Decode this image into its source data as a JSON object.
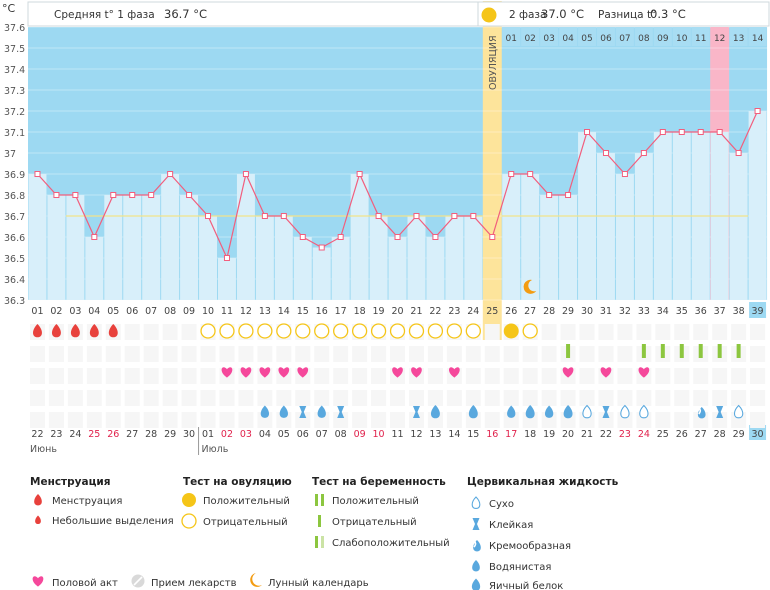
{
  "header": {
    "unit": "°С",
    "phase1": "Средняя t° 1 фаза",
    "phase1_value": "36.7 °C",
    "phase2": "2 фаза",
    "phase2_value": "37.0 °C",
    "diff": "Разница t°",
    "diff_value": "0.3 °C",
    "ovulation": "ОВУЛЯЦИЯ"
  },
  "colors": {
    "phase_bg": "#9dd9f2",
    "bar": "#d8effa",
    "line": "#f25e7d",
    "ovulation": "#fde49b",
    "highlight_day": "#f9b6c8",
    "menstruation": "#e8413c",
    "sex": "#f5489b",
    "ovu_test": "#f5c518",
    "preg_test": "#8cc63f",
    "mucus": "#59a8de",
    "moon": "#f39c12"
  },
  "chart_data": {
    "type": "line",
    "ylabel": "°С",
    "ylim": [
      36.3,
      37.6
    ],
    "yticks": [
      "36.3",
      "36.4",
      "36.5",
      "36.6",
      "36.7",
      "36.8",
      "36.9",
      "37",
      "37.1",
      "37.2",
      "37.3",
      "37.4",
      "37.5",
      "37.6"
    ],
    "cycle_days": [
      "01",
      "02",
      "03",
      "04",
      "05",
      "06",
      "07",
      "08",
      "09",
      "10",
      "11",
      "12",
      "13",
      "14",
      "15",
      "16",
      "17",
      "18",
      "19",
      "20",
      "21",
      "22",
      "23",
      "24",
      "25",
      "26",
      "27",
      "28",
      "29",
      "30",
      "31",
      "32",
      "33",
      "34",
      "35",
      "36",
      "37",
      "38",
      "39"
    ],
    "phase2_days": [
      "01",
      "02",
      "03",
      "04",
      "05",
      "06",
      "07",
      "08",
      "09",
      "10",
      "11",
      "12",
      "13",
      "14"
    ],
    "series": [
      {
        "values": [
          36.9,
          36.8,
          36.8,
          36.6,
          36.8,
          36.8,
          36.8,
          36.9,
          36.8,
          36.7,
          36.5,
          36.9,
          36.7,
          36.7,
          36.6,
          36.55,
          36.6,
          36.9,
          36.7,
          36.6,
          36.7,
          36.6,
          36.7,
          36.7,
          36.6,
          36.9,
          36.9,
          36.8,
          36.8,
          37.1,
          37.0,
          36.9,
          37.0,
          37.1,
          37.1,
          37.1,
          37.1,
          37.0,
          37.2
        ]
      }
    ],
    "phase1_avg": 36.7,
    "phase2_avg": 37.0,
    "ovulation_day": 25,
    "dates": [
      "22",
      "23",
      "24",
      "25",
      "26",
      "27",
      "28",
      "29",
      "30",
      "01",
      "02",
      "03",
      "04",
      "05",
      "06",
      "07",
      "08",
      "09",
      "10",
      "11",
      "12",
      "13",
      "14",
      "15",
      "16",
      "17",
      "18",
      "19",
      "20",
      "21",
      "22",
      "23",
      "24",
      "25",
      "26",
      "27",
      "28",
      "29",
      "30"
    ],
    "red_dates": [
      3,
      4,
      10,
      11,
      17,
      18,
      24,
      25,
      31,
      32
    ],
    "months": {
      "june": "Июнь",
      "july": "Июль"
    },
    "menstruation_days": [
      1,
      2,
      3,
      4,
      5
    ],
    "ovu_negative_days": [
      10,
      11,
      12,
      13,
      14,
      15,
      16,
      17,
      18,
      19,
      20,
      21,
      22,
      23,
      24,
      27
    ],
    "ovu_positive_days": [
      26
    ],
    "preg_test_days": [
      29,
      33,
      34,
      35,
      36,
      37,
      38
    ],
    "sex_days": [
      11,
      12,
      13,
      14,
      15,
      20,
      21,
      23,
      29,
      31,
      33
    ],
    "mucus": [
      {
        "day": 13,
        "kind": "water"
      },
      {
        "day": 14,
        "kind": "water"
      },
      {
        "day": 15,
        "kind": "sticky"
      },
      {
        "day": 16,
        "kind": "water"
      },
      {
        "day": 17,
        "kind": "sticky"
      },
      {
        "day": 21,
        "kind": "sticky"
      },
      {
        "day": 22,
        "kind": "egg"
      },
      {
        "day": 24,
        "kind": "egg"
      },
      {
        "day": 26,
        "kind": "water"
      },
      {
        "day": 27,
        "kind": "egg"
      },
      {
        "day": 28,
        "kind": "water"
      },
      {
        "day": 29,
        "kind": "egg"
      },
      {
        "day": 30,
        "kind": "dry"
      },
      {
        "day": 31,
        "kind": "sticky"
      },
      {
        "day": 32,
        "kind": "dry"
      },
      {
        "day": 33,
        "kind": "dry"
      },
      {
        "day": 36,
        "kind": "creamy"
      },
      {
        "day": 37,
        "kind": "sticky"
      },
      {
        "day": 38,
        "kind": "dry"
      }
    ],
    "moon_day": 27,
    "highlight_phase2_index": 12
  },
  "legend": {
    "menstruation_title": "Менструация",
    "menstruation": "Менструация",
    "spotting": "Небольшие выделения",
    "ovu_title": "Тест на овуляцию",
    "ovu_positive": "Положительный",
    "ovu_negative": "Отрицательный",
    "preg_title": "Тест на беременность",
    "preg_positive": "Положительный",
    "preg_negative": "Отрицательный",
    "preg_weak": "Слабоположительный",
    "mucus_title": "Цервикальная жидкость",
    "dry": "Сухо",
    "sticky": "Клейкая",
    "creamy": "Кремообразная",
    "water": "Водянистая",
    "egg": "Яичный белок",
    "sex": "Половой акт",
    "medicine": "Прием лекарств",
    "moon": "Лунный календарь"
  }
}
